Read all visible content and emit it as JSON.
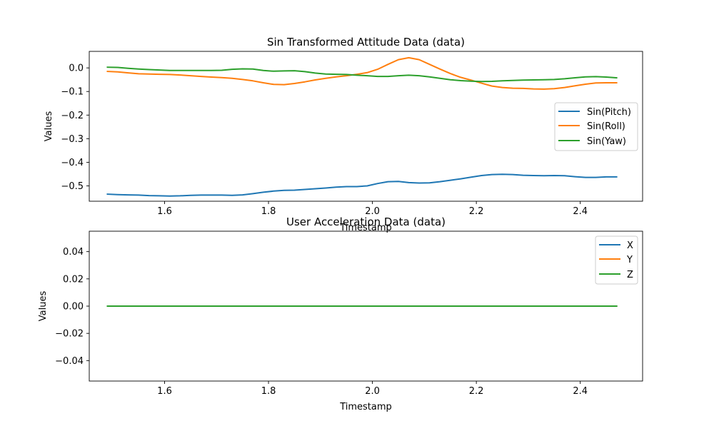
{
  "chart_data": [
    {
      "type": "line",
      "title": "Sin Transformed Attitude Data (data)",
      "xlabel": "Timestamp",
      "ylabel": "Values",
      "xlim": [
        1.455,
        2.52
      ],
      "ylim": [
        -0.565,
        0.07
      ],
      "xticks": [
        1.6,
        1.8,
        2.0,
        2.2,
        2.4
      ],
      "xtick_labels": [
        "1.6",
        "1.8",
        "2.0",
        "2.2",
        "2.4"
      ],
      "yticks": [
        0.0,
        -0.1,
        -0.2,
        -0.3,
        -0.4,
        -0.5
      ],
      "ytick_labels": [
        "0.0",
        "−0.1",
        "−0.2",
        "−0.3",
        "−0.4",
        "−0.5"
      ],
      "grid": false,
      "legend_position": "center-right",
      "x": [
        1.49,
        1.51,
        1.53,
        1.55,
        1.57,
        1.59,
        1.61,
        1.63,
        1.65,
        1.67,
        1.69,
        1.71,
        1.73,
        1.75,
        1.77,
        1.79,
        1.81,
        1.83,
        1.85,
        1.87,
        1.89,
        1.91,
        1.93,
        1.95,
        1.97,
        1.99,
        2.01,
        2.03,
        2.05,
        2.07,
        2.09,
        2.11,
        2.13,
        2.15,
        2.17,
        2.19,
        2.21,
        2.23,
        2.25,
        2.27,
        2.29,
        2.31,
        2.33,
        2.35,
        2.37,
        2.39,
        2.41,
        2.43,
        2.45,
        2.47
      ],
      "series": [
        {
          "name": "Sin(Pitch)",
          "color": "#1f77b4",
          "values": [
            -0.535,
            -0.537,
            -0.538,
            -0.539,
            -0.541,
            -0.542,
            -0.543,
            -0.542,
            -0.54,
            -0.539,
            -0.539,
            -0.539,
            -0.54,
            -0.538,
            -0.533,
            -0.527,
            -0.522,
            -0.519,
            -0.518,
            -0.515,
            -0.512,
            -0.509,
            -0.505,
            -0.503,
            -0.503,
            -0.5,
            -0.49,
            -0.482,
            -0.481,
            -0.486,
            -0.488,
            -0.487,
            -0.482,
            -0.476,
            -0.47,
            -0.463,
            -0.456,
            -0.452,
            -0.451,
            -0.452,
            -0.455,
            -0.456,
            -0.457,
            -0.456,
            -0.457,
            -0.461,
            -0.464,
            -0.464,
            -0.462,
            -0.462
          ]
        },
        {
          "name": "Sin(Roll)",
          "color": "#ff7f0e",
          "values": [
            -0.015,
            -0.017,
            -0.021,
            -0.025,
            -0.026,
            -0.027,
            -0.028,
            -0.03,
            -0.033,
            -0.036,
            -0.039,
            -0.041,
            -0.044,
            -0.049,
            -0.055,
            -0.063,
            -0.07,
            -0.071,
            -0.066,
            -0.059,
            -0.051,
            -0.044,
            -0.038,
            -0.033,
            -0.027,
            -0.02,
            -0.006,
            0.015,
            0.035,
            0.043,
            0.035,
            0.015,
            -0.005,
            -0.024,
            -0.04,
            -0.052,
            -0.065,
            -0.077,
            -0.083,
            -0.086,
            -0.087,
            -0.089,
            -0.09,
            -0.088,
            -0.083,
            -0.076,
            -0.069,
            -0.064,
            -0.063,
            -0.063
          ]
        },
        {
          "name": "Sin(Yaw)",
          "color": "#2ca02c",
          "values": [
            0.003,
            0.002,
            -0.002,
            -0.005,
            -0.007,
            -0.009,
            -0.011,
            -0.011,
            -0.011,
            -0.011,
            -0.011,
            -0.01,
            -0.006,
            -0.004,
            -0.005,
            -0.011,
            -0.014,
            -0.013,
            -0.012,
            -0.016,
            -0.022,
            -0.026,
            -0.027,
            -0.028,
            -0.031,
            -0.033,
            -0.036,
            -0.036,
            -0.033,
            -0.031,
            -0.033,
            -0.038,
            -0.044,
            -0.05,
            -0.054,
            -0.056,
            -0.058,
            -0.057,
            -0.055,
            -0.053,
            -0.052,
            -0.051,
            -0.05,
            -0.049,
            -0.046,
            -0.042,
            -0.038,
            -0.037,
            -0.039,
            -0.042
          ]
        }
      ]
    },
    {
      "type": "line",
      "title": "User Acceleration Data (data)",
      "xlabel": "Timestamp",
      "ylabel": "Values",
      "xlim": [
        1.455,
        2.52
      ],
      "ylim": [
        -0.055,
        0.055
      ],
      "xticks": [
        1.6,
        1.8,
        2.0,
        2.2,
        2.4
      ],
      "xtick_labels": [
        "1.6",
        "1.8",
        "2.0",
        "2.2",
        "2.4"
      ],
      "yticks": [
        0.04,
        0.02,
        0.0,
        -0.02,
        -0.04
      ],
      "ytick_labels": [
        "0.04",
        "0.02",
        "0.00",
        "−0.02",
        "−0.04"
      ],
      "grid": false,
      "legend_position": "top-right",
      "x": [
        1.49,
        2.47
      ],
      "series": [
        {
          "name": "X",
          "color": "#1f77b4",
          "values": [
            0.0,
            0.0
          ]
        },
        {
          "name": "Y",
          "color": "#ff7f0e",
          "values": [
            0.0,
            0.0
          ]
        },
        {
          "name": "Z",
          "color": "#2ca02c",
          "values": [
            0.0,
            0.0
          ]
        }
      ]
    }
  ]
}
